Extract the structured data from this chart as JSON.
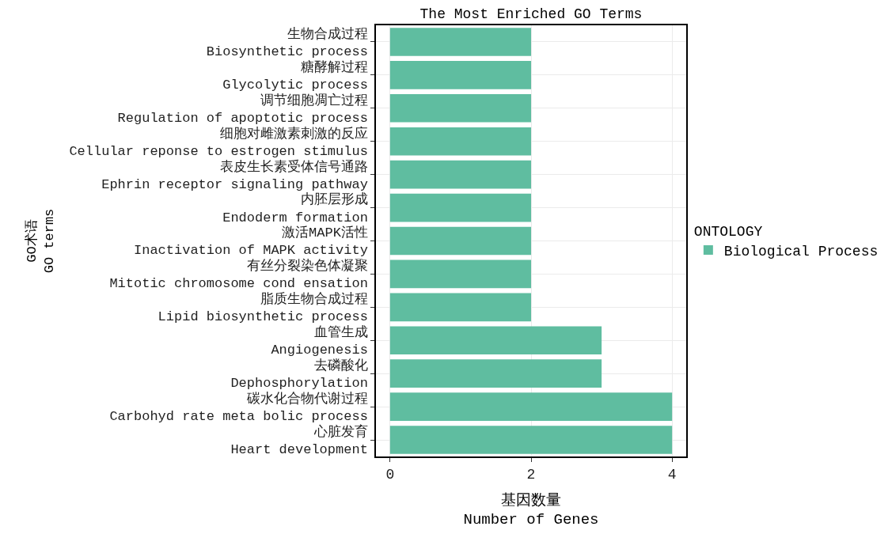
{
  "chart_data": {
    "type": "bar",
    "orientation": "horizontal",
    "title": "The Most Enriched GO Terms",
    "categories": [
      "生物合成过程\nBiosynthetic process",
      "糖酵解过程\nGlycolytic process",
      "调节细胞凋亡过程\nRegulation of apoptotic process",
      "细胞对雌激素刺激的反应\nCellular reponse to estrogen stimulus",
      "表皮生长素受体信号通路\nEphrin receptor signaling pathway",
      "内胚层形成\nEndoderm formation",
      "激活MAPK活性\nInactivation of MAPK activity",
      "有丝分裂染色体凝聚\nMitotic chromosome cond ensation",
      "脂质生物合成过程\nLipid biosynthetic process",
      "血管生成\nAngiogenesis",
      "去磷酸化\nDephosphorylation",
      "碳水化合物代谢过程\nCarbohyd rate meta bolic process",
      "心脏发育\nHeart development"
    ],
    "series": [
      {
        "name": "Biological Process",
        "color": "#5fbda0",
        "values": [
          2,
          2,
          2,
          2,
          2,
          2,
          2,
          2,
          2,
          3,
          3,
          4,
          4
        ]
      }
    ],
    "xlabel": "基因数量\nNumber of Genes",
    "ylabel": "GO术语\nGO terms",
    "legend_title": "ONTOLOGY",
    "xlim": [
      -0.2,
      4.2
    ],
    "xticks": [
      0,
      2,
      4
    ],
    "grid": true,
    "legend": "right"
  }
}
